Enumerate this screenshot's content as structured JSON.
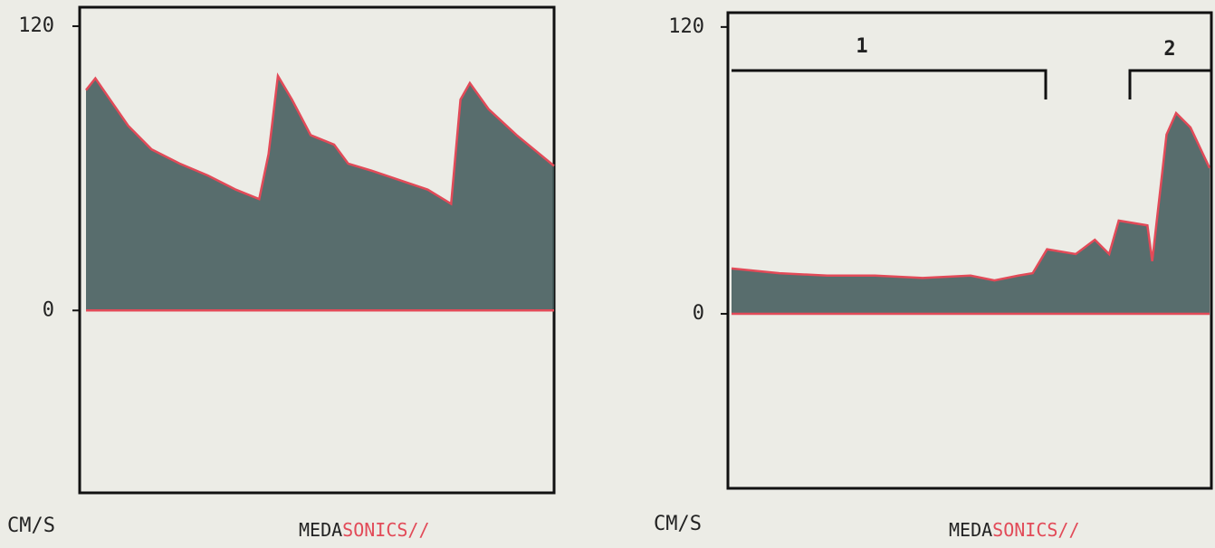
{
  "chart_data": [
    {
      "type": "area",
      "x": [
        0,
        2,
        9,
        14,
        20,
        26,
        32,
        37,
        39,
        41,
        44,
        48,
        53,
        56,
        61,
        67,
        73,
        78,
        80,
        82,
        86,
        92,
        100
      ],
      "values": [
        93,
        98,
        78,
        68,
        62,
        57,
        51,
        47,
        66,
        99,
        89,
        74,
        70,
        62,
        59,
        55,
        51,
        45,
        89,
        96,
        85,
        74,
        61
      ],
      "xlim": [
        0,
        100
      ],
      "ylim": [
        -77,
        128
      ],
      "yticks": [
        0,
        120
      ],
      "y_label": "CM/S",
      "brand": [
        "MEDA",
        "SONICS//"
      ],
      "color": "#e24a58",
      "fill_color": "#3e5757"
    },
    {
      "type": "area",
      "x": [
        0,
        10,
        20,
        30,
        40,
        50,
        55,
        60,
        63,
        66,
        72,
        76,
        79,
        81,
        87,
        88,
        91,
        93,
        96,
        100
      ],
      "values": [
        19,
        17,
        16,
        16,
        15,
        16,
        14,
        16,
        17,
        27,
        25,
        31,
        25,
        39,
        37,
        22,
        75,
        84,
        78,
        61
      ],
      "xlim": [
        0,
        100
      ],
      "ylim": [
        -73,
        126
      ],
      "yticks": [
        0,
        120
      ],
      "y_label": "CM/S",
      "brand": [
        "MEDA",
        "SONICS//"
      ],
      "annotations": [
        "1",
        "2"
      ],
      "color": "#e24a58",
      "fill_color": "#3e5757"
    }
  ]
}
